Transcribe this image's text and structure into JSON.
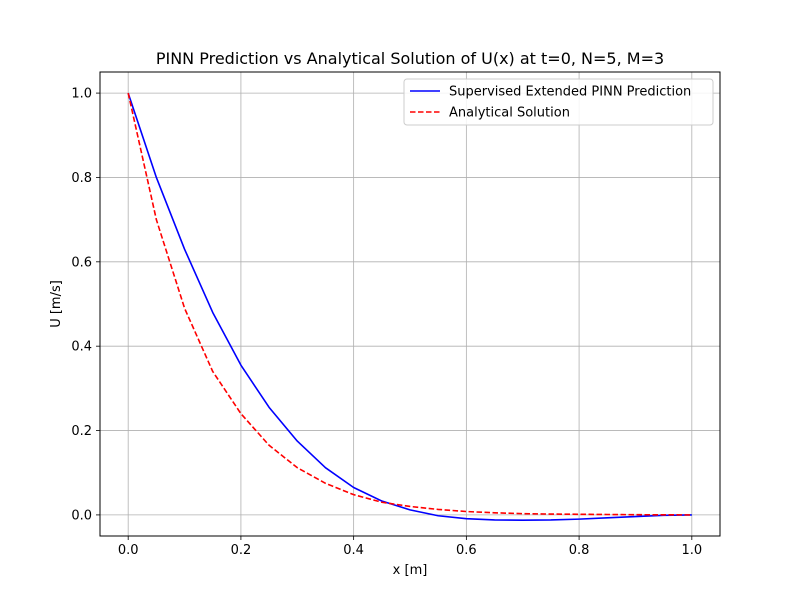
{
  "chart_data": {
    "type": "line",
    "title": "PINN Prediction vs Analytical Solution of U(x) at t=0, N=5, M=3",
    "xlabel": "x [m]",
    "ylabel": "U [m/s]",
    "xlim": [
      -0.05,
      1.05
    ],
    "ylim": [
      -0.05,
      1.05
    ],
    "xticks": [
      "0.0",
      "0.2",
      "0.4",
      "0.6",
      "0.8",
      "1.0"
    ],
    "yticks": [
      "0.0",
      "0.2",
      "0.4",
      "0.6",
      "0.8",
      "1.0"
    ],
    "grid": true,
    "legend_position": "top-right",
    "x": [
      0.0,
      0.05,
      0.1,
      0.15,
      0.2,
      0.25,
      0.3,
      0.35,
      0.4,
      0.45,
      0.5,
      0.55,
      0.6,
      0.65,
      0.7,
      0.75,
      0.8,
      0.85,
      0.9,
      0.95,
      1.0
    ],
    "series": [
      {
        "name": "Supervised Extended PINN Prediction",
        "color": "#0000ff",
        "style": "solid",
        "values": [
          1.0,
          0.8,
          0.63,
          0.48,
          0.355,
          0.255,
          0.175,
          0.112,
          0.065,
          0.033,
          0.012,
          -0.002,
          -0.009,
          -0.012,
          -0.0125,
          -0.012,
          -0.01,
          -0.007,
          -0.004,
          -0.001,
          0.0
        ]
      },
      {
        "name": "Analytical Solution",
        "color": "#ff0000",
        "style": "dashed",
        "values": [
          1.0,
          0.7,
          0.49,
          0.34,
          0.24,
          0.165,
          0.112,
          0.075,
          0.048,
          0.03,
          0.02,
          0.013,
          0.008,
          0.005,
          0.003,
          0.002,
          0.0015,
          0.001,
          0.0005,
          0.0002,
          0.0
        ]
      }
    ]
  }
}
